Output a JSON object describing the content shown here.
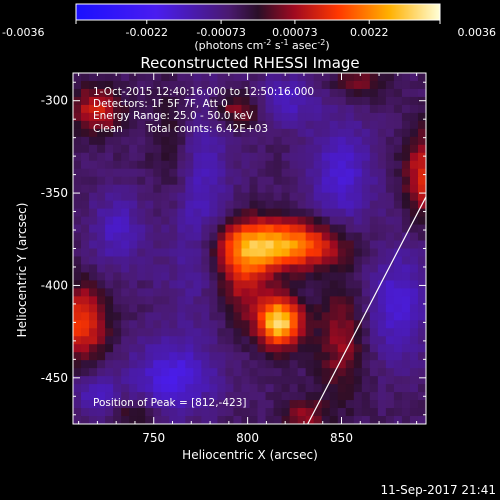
{
  "chart_data": {
    "type": "heatmap",
    "title": "Reconstructed RHESSI Image",
    "xlabel": "Heliocentric X (arcsec)",
    "ylabel": "Heliocentric Y (arcsec)",
    "xlim": [
      707,
      895
    ],
    "ylim": [
      -475,
      -285
    ],
    "x_ticks": [
      750,
      800,
      850
    ],
    "y_ticks": [
      -300,
      -350,
      -400,
      -450
    ],
    "colorbar": {
      "range": [
        -0.0036,
        0.0036
      ],
      "tick_labels": [
        "-0.0036",
        "-0.0022",
        "-0.00073",
        "0.00073",
        "0.0022",
        "0.0036"
      ],
      "unit_label": [
        "(photons cm",
        "-2",
        " s",
        "-1",
        " asec",
        "-2",
        ")"
      ]
    },
    "annotations": {
      "time_range": "1-Oct-2015 12:40:16.000 to 12:50:16.000",
      "detectors": "Detectors: 1F 5F 7F, Att 0",
      "energy_range": "Energy Range: 25.0 - 50.0 keV",
      "clean": "Clean",
      "total_counts": "Total counts: 6.42E+03",
      "peak": "Position of Peak = [812,-423]"
    },
    "peak_position": [
      812,
      -423
    ],
    "limb_line": {
      "x": [
        832,
        895
      ],
      "y": [
        -475,
        -352
      ]
    },
    "sources": [
      {
        "x": 818,
        "y": -378,
        "sx": 22,
        "sy": 9,
        "amp": 0.003
      },
      {
        "x": 817,
        "y": -420,
        "sx": 8,
        "sy": 9,
        "amp": 0.0036
      },
      {
        "x": 798,
        "y": -392,
        "sx": 10,
        "sy": 18,
        "amp": 0.0016
      },
      {
        "x": 760,
        "y": -330,
        "sx": 9,
        "sy": 30,
        "amp": 0.0011
      },
      {
        "x": 712,
        "y": -420,
        "sx": 9,
        "sy": 14,
        "amp": 0.002
      },
      {
        "x": 720,
        "y": -305,
        "sx": 9,
        "sy": 9,
        "amp": 0.0016
      },
      {
        "x": 850,
        "y": -430,
        "sx": 9,
        "sy": 22,
        "amp": 0.0011
      },
      {
        "x": 895,
        "y": -340,
        "sx": 8,
        "sy": 16,
        "amp": 0.0017
      },
      {
        "x": 795,
        "y": -305,
        "sx": 10,
        "sy": 7,
        "amp": 0.0012
      },
      {
        "x": 830,
        "y": -470,
        "sx": 8,
        "sy": 6,
        "amp": 0.0011
      },
      {
        "x": 860,
        "y": -290,
        "sx": 10,
        "sy": 6,
        "amp": 0.001
      },
      {
        "x": 740,
        "y": -470,
        "sx": 9,
        "sy": 6,
        "amp": 0.0008
      },
      {
        "x": 770,
        "y": -350,
        "sx": 14,
        "sy": 40,
        "amp": -0.0012
      },
      {
        "x": 850,
        "y": -340,
        "sx": 12,
        "sy": 22,
        "amp": -0.0012
      },
      {
        "x": 760,
        "y": -450,
        "sx": 16,
        "sy": 14,
        "amp": -0.0014
      },
      {
        "x": 730,
        "y": -370,
        "sx": 10,
        "sy": 14,
        "amp": -0.001
      },
      {
        "x": 880,
        "y": -410,
        "sx": 12,
        "sy": 22,
        "amp": -0.0012
      },
      {
        "x": 820,
        "y": -300,
        "sx": 12,
        "sy": 10,
        "amp": -0.001
      },
      {
        "x": 720,
        "y": -460,
        "sx": 8,
        "sy": 8,
        "amp": -0.001
      }
    ]
  },
  "footer": {
    "date": "11-Sep-2017 21:41"
  }
}
